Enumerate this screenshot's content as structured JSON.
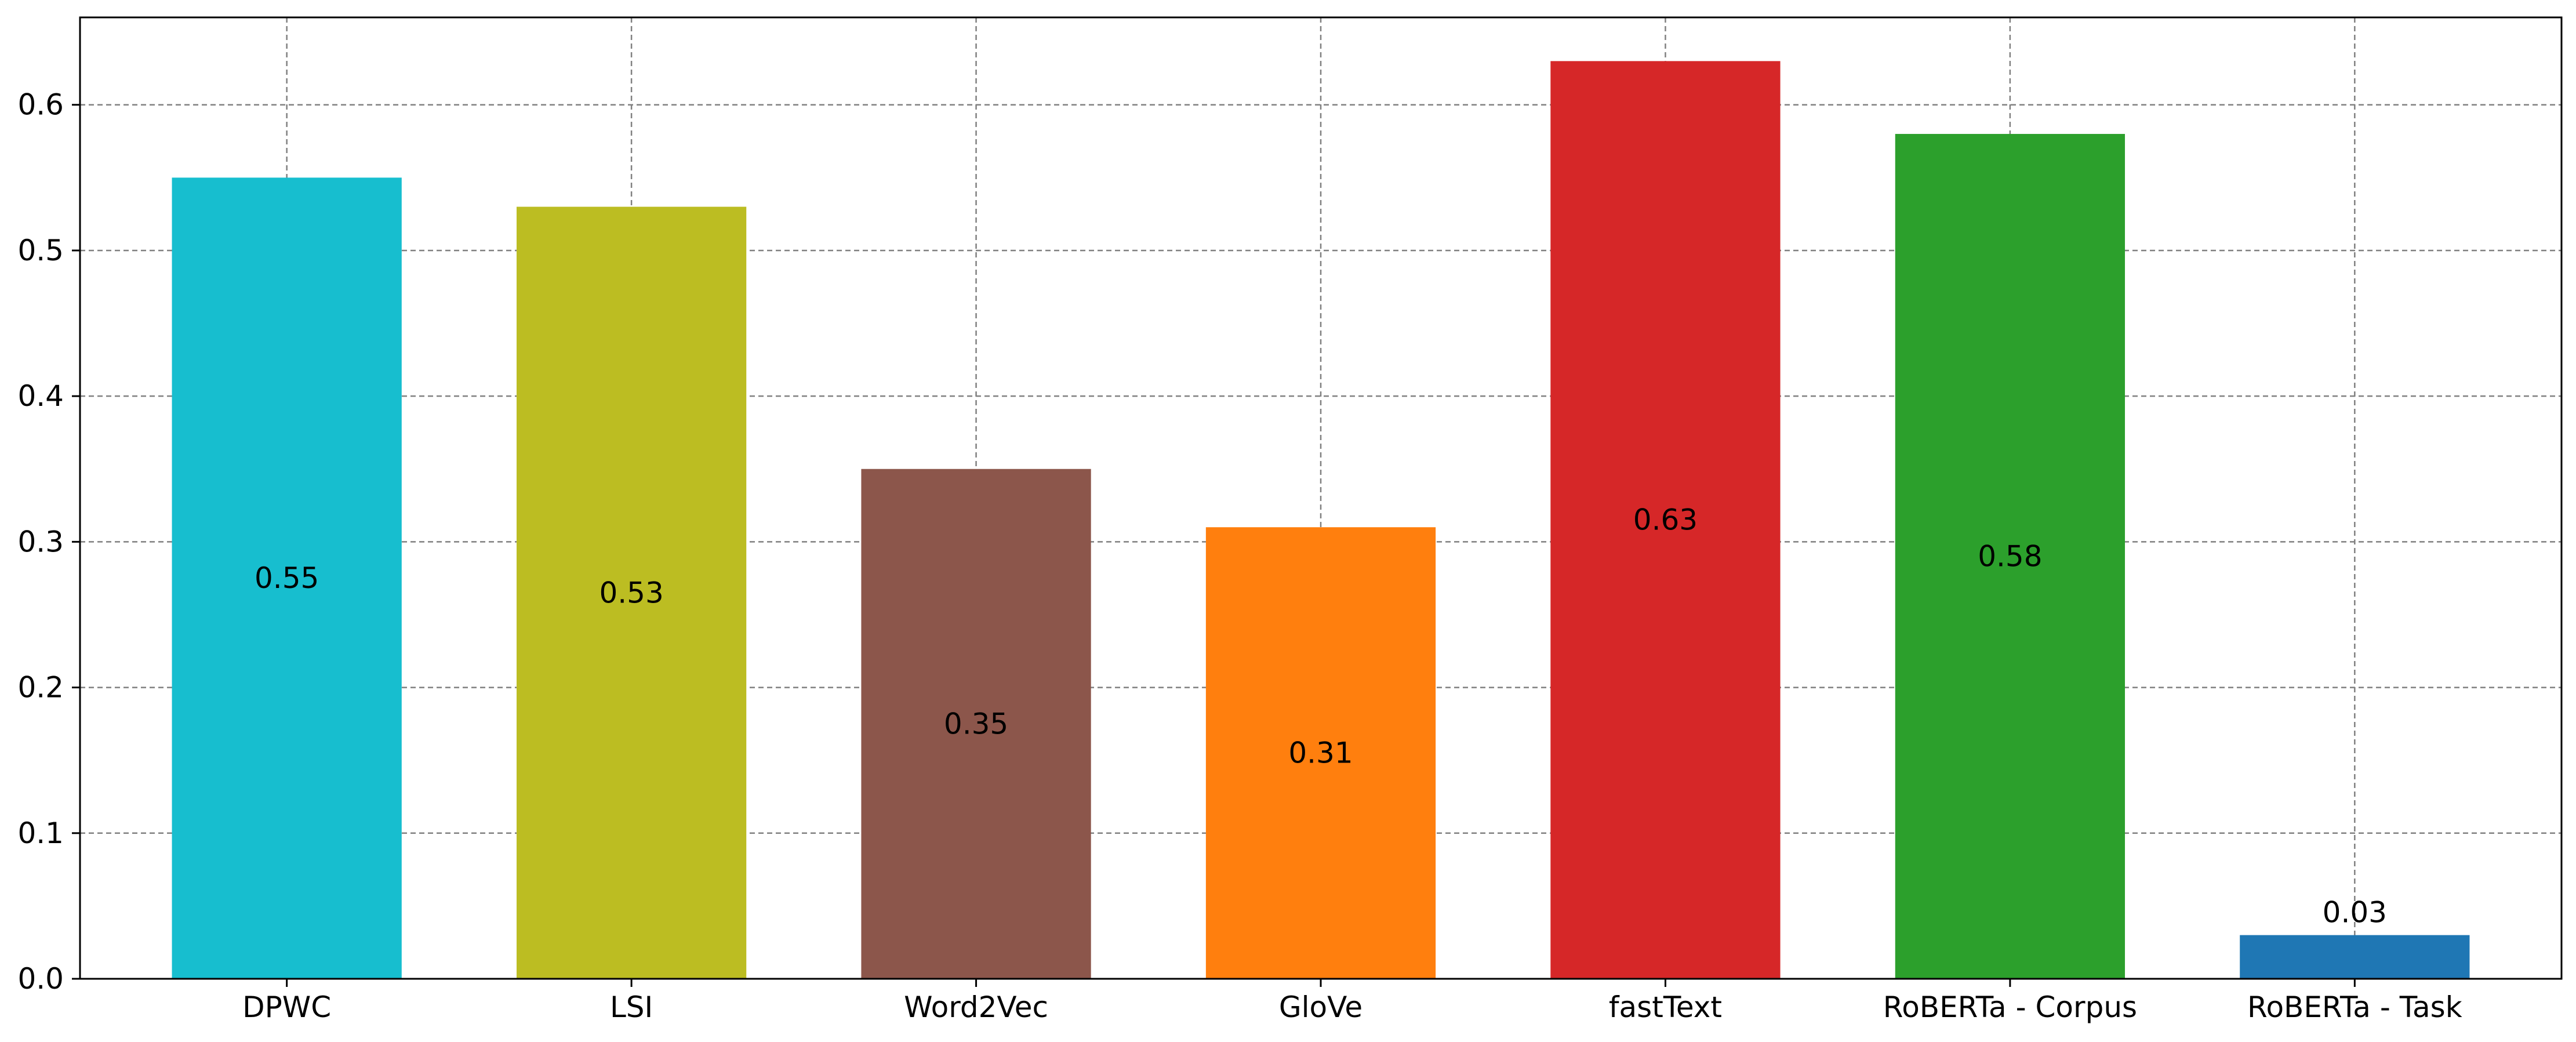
{
  "chart_data": {
    "type": "bar",
    "title": "",
    "xlabel": "",
    "ylabel": "",
    "categories": [
      "DPWC",
      "LSI",
      "Word2Vec",
      "GloVe",
      "fastText",
      "RoBERTa - Corpus",
      "RoBERTa - Task"
    ],
    "values": [
      0.55,
      0.53,
      0.35,
      0.31,
      0.63,
      0.58,
      0.03
    ],
    "data_labels": [
      "0.55",
      "0.53",
      "0.35",
      "0.31",
      "0.63",
      "0.58",
      "0.03"
    ],
    "colors": [
      "#17becf",
      "#bcbd22",
      "#8c564b",
      "#ff7f0e",
      "#d62728",
      "#2ca02c",
      "#1f77b4"
    ],
    "ylim": [
      0,
      0.66
    ],
    "yticks": [
      0.0,
      0.1,
      0.2,
      0.3,
      0.4,
      0.5,
      0.6
    ],
    "ytick_labels": [
      "0.0",
      "0.1",
      "0.2",
      "0.3",
      "0.4",
      "0.5",
      "0.6"
    ],
    "grid": true,
    "legend": "none"
  }
}
